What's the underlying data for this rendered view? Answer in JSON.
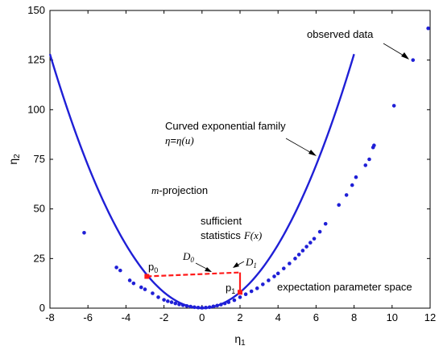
{
  "chart_data": {
    "type": "scatter",
    "xlim": [
      -8,
      12
    ],
    "ylim": [
      0,
      150
    ],
    "xticks": [
      -8,
      -6,
      -4,
      -2,
      0,
      2,
      4,
      6,
      8,
      10,
      12
    ],
    "yticks": [
      0,
      25,
      50,
      75,
      100,
      125,
      150
    ],
    "xlabel": {
      "base": "η",
      "sub": "1"
    },
    "ylabel": {
      "base": "η",
      "sub": "2"
    },
    "grid": false,
    "series": [
      {
        "kind": "curve",
        "color": "#1f1fd6",
        "function": "y = 2x^2",
        "x_range": [
          -8,
          8
        ],
        "points": [
          [
            -8,
            128
          ],
          [
            -6,
            72
          ],
          [
            -4,
            32
          ],
          [
            -2,
            8
          ],
          [
            0,
            0
          ],
          [
            2,
            8
          ],
          [
            4,
            32
          ],
          [
            6,
            72
          ],
          [
            8,
            128
          ]
        ]
      },
      {
        "kind": "scatter",
        "color": "#1f1fd6",
        "points": [
          [
            -6.2,
            38
          ],
          [
            -4.5,
            20.5
          ],
          [
            -4.3,
            19
          ],
          [
            -3.8,
            14
          ],
          [
            -3.6,
            12.5
          ],
          [
            -3.2,
            10.5
          ],
          [
            -3.0,
            9.5
          ],
          [
            -2.6,
            7.5
          ],
          [
            -2.3,
            5.5
          ],
          [
            -2.0,
            4.2
          ],
          [
            -1.8,
            3.5
          ],
          [
            -1.6,
            3.0
          ],
          [
            -1.4,
            2.4
          ],
          [
            -1.2,
            1.9
          ],
          [
            -1.0,
            1.5
          ],
          [
            -0.8,
            1.1
          ],
          [
            -0.6,
            0.8
          ],
          [
            -0.4,
            0.5
          ],
          [
            -0.2,
            0.3
          ],
          [
            0.0,
            0.2
          ],
          [
            0.2,
            0.3
          ],
          [
            0.4,
            0.5
          ],
          [
            0.6,
            0.9
          ],
          [
            0.8,
            1.3
          ],
          [
            1.0,
            1.8
          ],
          [
            1.2,
            2.4
          ],
          [
            1.4,
            3.0
          ],
          [
            1.7,
            4.0
          ],
          [
            2.0,
            5.5
          ],
          [
            2.3,
            7.0
          ],
          [
            2.6,
            8.5
          ],
          [
            2.9,
            10.0
          ],
          [
            3.2,
            12.0
          ],
          [
            3.5,
            14.0
          ],
          [
            3.8,
            16.0
          ],
          [
            4.0,
            17.5
          ],
          [
            4.3,
            20.0
          ],
          [
            4.6,
            22.5
          ],
          [
            4.9,
            25.0
          ],
          [
            5.1,
            27.0
          ],
          [
            5.3,
            29.0
          ],
          [
            5.5,
            31.0
          ],
          [
            5.7,
            33.0
          ],
          [
            5.9,
            35.0
          ],
          [
            6.2,
            38.5
          ],
          [
            6.5,
            42.5
          ],
          [
            7.2,
            52
          ],
          [
            7.6,
            57
          ],
          [
            7.9,
            62
          ],
          [
            8.1,
            66
          ],
          [
            8.6,
            72
          ],
          [
            8.8,
            75
          ],
          [
            9.0,
            81
          ],
          [
            9.05,
            82
          ],
          [
            10.1,
            102
          ],
          [
            11.1,
            125
          ],
          [
            11.9,
            141
          ]
        ]
      },
      {
        "kind": "projection",
        "color": "#ff1a1a",
        "p0": [
          -2.9,
          16
        ],
        "p1": [
          2.0,
          8
        ],
        "corner": [
          2.0,
          18
        ]
      }
    ],
    "annotations": {
      "observed": "observed data",
      "curved": "Curved exponential family",
      "eta_lhs": "η",
      "eta_eq": "=",
      "eta_rhs": "η",
      "eta_arg": "(u)",
      "mproj_m": "m",
      "mproj_rest": "-projection",
      "suff1": "sufficient",
      "suff2": "statistics",
      "suff_F": "F(x)",
      "d0_base": "D",
      "d0_sub": "0",
      "d1_base": "D",
      "d1_sub": "1",
      "p0_base": "p",
      "p0_sub": "0",
      "p1_base": "p",
      "p1_sub": "1",
      "expectation": "expectation parameter space"
    }
  }
}
